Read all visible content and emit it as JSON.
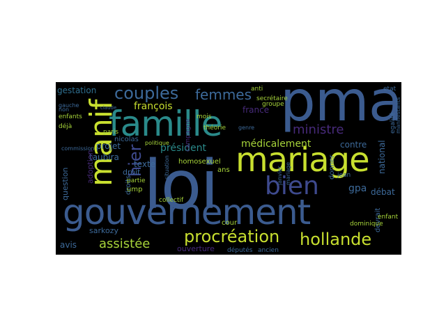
{
  "word_cloud": {
    "background_color": "#000000",
    "words": [
      {
        "text": "loi",
        "color": "#3b5b8f"
      },
      {
        "text": "gouvernement",
        "color": "#3b5b8f"
      },
      {
        "text": "famille",
        "color": "#2a8a8a"
      },
      {
        "text": "pma",
        "color": "#3b5b8f"
      },
      {
        "text": "mariage",
        "color": "#c8df2f"
      },
      {
        "text": "manif",
        "color": "#c8df2f"
      },
      {
        "text": "bien",
        "color": "#3e4a8e"
      },
      {
        "text": "procréation",
        "color": "#c8df2f"
      },
      {
        "text": "hollande",
        "color": "#c8df2f"
      },
      {
        "text": "couples",
        "color": "#3d6a9a"
      },
      {
        "text": "femmes",
        "color": "#3d6a9a"
      },
      {
        "text": "ministre",
        "color": "#472a7a"
      },
      {
        "text": "assistée",
        "color": "#a7d43a"
      },
      {
        "text": "médicalement",
        "color": "#a7d43a"
      },
      {
        "text": "président",
        "color": "#2a8a8a"
      },
      {
        "text": "françois",
        "color": "#c8df2f"
      },
      {
        "text": "hier",
        "color": "#3e4a8e"
      },
      {
        "text": "gestation",
        "color": "#2f6f8f"
      },
      {
        "text": "taubira",
        "color": "#3d6a9a"
      },
      {
        "text": "gpa",
        "color": "#3d6a9a"
      },
      {
        "text": "débat",
        "color": "#3d6a9a"
      },
      {
        "text": "france",
        "color": "#472a7a"
      },
      {
        "text": "contre",
        "color": "#3d6a9a"
      },
      {
        "text": "texte",
        "color": "#3d6a9a"
      },
      {
        "text": "projet",
        "color": "#3d6a9a"
      },
      {
        "text": "question",
        "color": "#3d6a9a"
      },
      {
        "text": "adoption",
        "color": "#472a7a"
      },
      {
        "text": "avis",
        "color": "#3d6a9a"
      },
      {
        "text": "sarkozy",
        "color": "#3d6a9a"
      },
      {
        "text": "ouverture",
        "color": "#472a7a"
      },
      {
        "text": "droit",
        "color": "#3d6a9a"
      },
      {
        "text": "droits",
        "color": "#3d6a9a"
      },
      {
        "text": "ump",
        "color": "#a7d43a"
      },
      {
        "text": "cour",
        "color": "#a7d43a"
      },
      {
        "text": "ans",
        "color": "#a7d43a"
      },
      {
        "text": "homosexuel",
        "color": "#a7d43a"
      },
      {
        "text": "nicolas",
        "color": "#3d6a9a"
      },
      {
        "text": "national",
        "color": "#3d6a9a"
      },
      {
        "text": "devrait",
        "color": "#3d6a9a"
      },
      {
        "text": "donner",
        "color": "#3d6a9a"
      },
      {
        "text": "enfant",
        "color": "#a7d43a"
      },
      {
        "text": "dominique",
        "color": "#a7d43a"
      },
      {
        "text": "ancien",
        "color": "#3d6a9a"
      },
      {
        "text": "députés",
        "color": "#3d6a9a"
      },
      {
        "text": "groupe",
        "color": "#a7d43a"
      },
      {
        "text": "théorie",
        "color": "#a7d43a"
      },
      {
        "text": "collectif",
        "color": "#a7d43a"
      },
      {
        "text": "campagne",
        "color": "#472a7a"
      },
      {
        "text": "enfants",
        "color": "#a7d43a"
      },
      {
        "text": "déjà",
        "color": "#a7d43a"
      },
      {
        "text": "secrétaire",
        "color": "#a7d43a"
      },
      {
        "text": "jean",
        "color": "#3d6a9a"
      },
      {
        "text": "paris",
        "color": "#a7d43a"
      },
      {
        "text": "anti",
        "color": "#a7d43a"
      },
      {
        "text": "mois",
        "color": "#a7d43a"
      },
      {
        "text": "genre",
        "color": "#3d6a9a"
      },
      {
        "text": "partie",
        "color": "#a7d43a"
      },
      {
        "text": "politique",
        "color": "#a7d43a"
      },
      {
        "text": "janvier",
        "color": "#3d6a9a"
      },
      {
        "text": "mariage",
        "color": "#3d6a9a"
      },
      {
        "text": "gauche",
        "color": "#3d6a9a"
      },
      {
        "text": "commission",
        "color": "#3d6a9a"
      },
      {
        "text": "etat",
        "color": "#3d6a9a"
      },
      {
        "text": "egalité",
        "color": "#3d6a9a"
      },
      {
        "text": "manifestants",
        "color": "#3d6a9a"
      },
      {
        "text": "claude",
        "color": "#3d6a9a"
      },
      {
        "text": "non",
        "color": "#3d6a9a"
      },
      {
        "text": "situation",
        "color": "#3d6a9a"
      }
    ]
  }
}
